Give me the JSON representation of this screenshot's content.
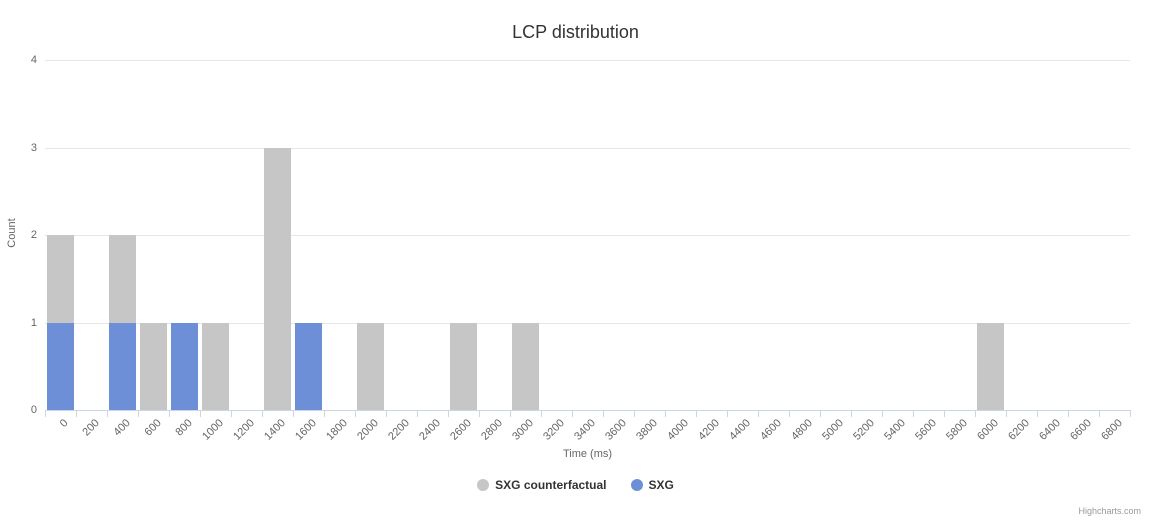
{
  "title": "LCP distribution",
  "credits": "Highcharts.com",
  "chart_data": {
    "type": "bar",
    "title": "LCP distribution",
    "xlabel": "Time (ms)",
    "ylabel": "Count",
    "ylim": [
      0,
      4
    ],
    "yticks": [
      0,
      1,
      2,
      3,
      4
    ],
    "grid": "horizontal",
    "legend_position": "bottom",
    "categories": [
      "0",
      "200",
      "400",
      "600",
      "800",
      "1000",
      "1200",
      "1400",
      "1600",
      "1800",
      "2000",
      "2200",
      "2400",
      "2600",
      "2800",
      "3000",
      "3200",
      "3400",
      "3600",
      "3800",
      "4000",
      "4200",
      "4400",
      "4600",
      "4800",
      "5000",
      "5200",
      "5400",
      "5600",
      "5800",
      "6000",
      "6200",
      "6400",
      "6600",
      "6800"
    ],
    "series": [
      {
        "name": "SXG counterfactual",
        "color": "#c6c6c6",
        "values": [
          2,
          0,
          2,
          1,
          0,
          1,
          0,
          3,
          0,
          0,
          1,
          0,
          0,
          1,
          0,
          1,
          0,
          0,
          0,
          0,
          0,
          0,
          0,
          0,
          0,
          0,
          0,
          0,
          0,
          0,
          1,
          0,
          0,
          0,
          0
        ]
      },
      {
        "name": "SXG",
        "color": "#6d8fd8",
        "values": [
          1,
          0,
          1,
          0,
          1,
          0,
          0,
          0,
          1,
          0,
          0,
          0,
          0,
          0,
          0,
          0,
          0,
          0,
          0,
          0,
          0,
          0,
          0,
          0,
          0,
          0,
          0,
          0,
          0,
          0,
          0,
          0,
          0,
          0,
          0
        ]
      }
    ]
  }
}
